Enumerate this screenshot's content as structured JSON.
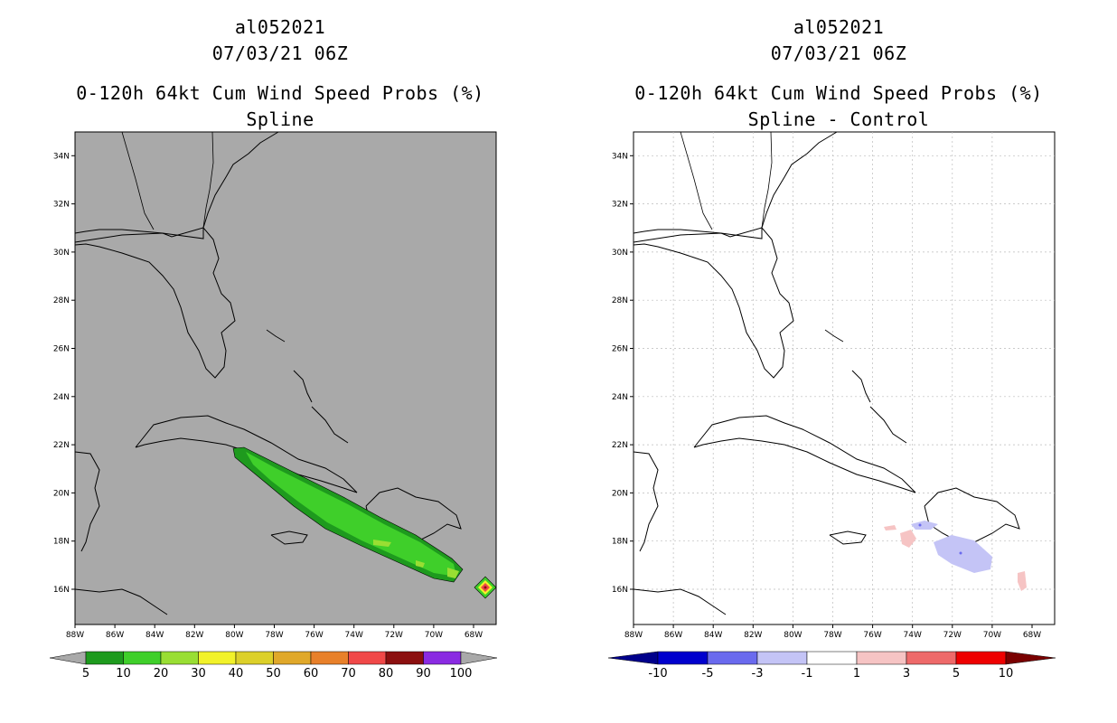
{
  "panels": [
    {
      "id": "left",
      "title_lines": [
        "al052021",
        "07/03/21 06Z",
        "0-120h 64kt Cum Wind Speed Probs (%)",
        "Spline"
      ],
      "background": "#a9a9a9",
      "colorbar": {
        "labels": [
          "5",
          "10",
          "20",
          "30",
          "40",
          "50",
          "60",
          "70",
          "80",
          "90",
          "100"
        ],
        "colors": [
          "#1e9a1e",
          "#3fcf2a",
          "#99de33",
          "#f2f22a",
          "#dcd02a",
          "#e0a82a",
          "#e8802a",
          "#f04848",
          "#8b0f0f",
          "#8a2be2"
        ],
        "end_low_color": "#a9a9a9",
        "end_high_color": "#a9a9a9"
      }
    },
    {
      "id": "right",
      "title_lines": [
        "al052021",
        "07/03/21 06Z",
        "0-120h 64kt Cum Wind Speed Probs (%)",
        "Spline - Control"
      ],
      "background": "#ffffff",
      "colorbar": {
        "labels": [
          "-10",
          "-5",
          "-3",
          "-1",
          "1",
          "3",
          "5",
          "10"
        ],
        "colors": [
          "#0000cd",
          "#6a6aee",
          "#c4c4f6",
          "#ffffff",
          "#f6c4c4",
          "#ee6a6a",
          "#ee0000"
        ],
        "end_low_color": "#00008b",
        "end_high_color": "#7a0000"
      }
    }
  ],
  "axes": {
    "lon_labels": [
      "88W",
      "86W",
      "84W",
      "82W",
      "80W",
      "78W",
      "76W",
      "74W",
      "72W",
      "70W",
      "68W"
    ],
    "lat_labels": [
      "16N",
      "18N",
      "20N",
      "22N",
      "24N",
      "26N",
      "28N",
      "30N",
      "32N",
      "34N"
    ]
  }
}
